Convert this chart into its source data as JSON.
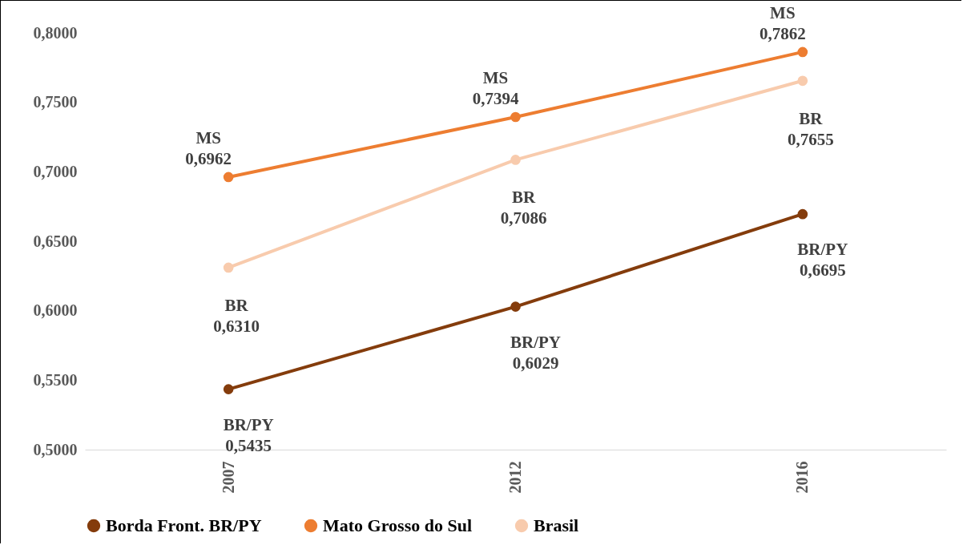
{
  "chart_data": {
    "type": "line",
    "categories": [
      "2007",
      "2012",
      "2016"
    ],
    "series": [
      {
        "name": "Borda Front. BR/PY",
        "color": "#843c0c",
        "values": [
          0.5435,
          0.6029,
          0.6695
        ],
        "value_labels": [
          "BR/PY\n0,5435",
          "BR/PY\n0,6029",
          "BR/PY\n0,6695"
        ]
      },
      {
        "name": "Mato Grosso do Sul",
        "color": "#ed7d31",
        "values": [
          0.6962,
          0.7394,
          0.7862
        ],
        "value_labels": [
          "MS\n0,6962",
          "MS\n0,7394",
          "MS\n0,7862"
        ]
      },
      {
        "name": "Brasil",
        "color": "#f8cbad",
        "values": [
          0.631,
          0.7086,
          0.7655
        ],
        "value_labels": [
          "BR\n0,6310",
          "BR\n0,7086",
          "BR\n0,7655"
        ]
      }
    ],
    "ylim": [
      0.5,
      0.8
    ],
    "yticks": [
      {
        "value": 0.5,
        "label": "0,5000"
      },
      {
        "value": 0.55,
        "label": "0,5500"
      },
      {
        "value": 0.6,
        "label": "0,6000"
      },
      {
        "value": 0.65,
        "label": "0,6500"
      },
      {
        "value": 0.7,
        "label": "0,7000"
      },
      {
        "value": 0.75,
        "label": "0,7500"
      },
      {
        "value": 0.8,
        "label": "0,8000"
      }
    ],
    "grid": false,
    "legend": "bottom",
    "marker": "circle",
    "line_style": "solid"
  }
}
